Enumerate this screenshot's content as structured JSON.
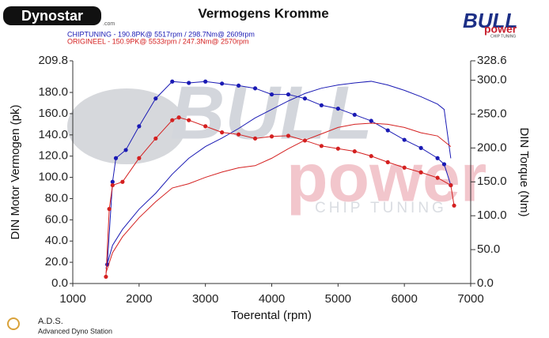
{
  "chart_data": {
    "type": "line",
    "title": "Vermogens Kromme",
    "subtitles": [
      {
        "text": "CHIPTUNING  - 190.8PK@ 5517rpm / 298.7Nm@ 2609rpm",
        "color": "#1a1ab4"
      },
      {
        "text": "ORIGINEEL  - 150.9PK@ 5533rpm / 247.3Nm@ 2570rpm",
        "color": "#d42020"
      }
    ],
    "xlabel": "Toerental (rpm)",
    "ylabel": "DIN Motor Vermogen (pk)",
    "y2label": "DIN Torque (Nm)",
    "xlim": [
      1000,
      7000
    ],
    "xticks": [
      1000,
      2000,
      3000,
      4000,
      5000,
      6000,
      7000
    ],
    "ylim": [
      0,
      209.8
    ],
    "yticks": [
      {
        "value": 0,
        "label": "0.0"
      },
      {
        "value": 20,
        "label": "20.0"
      },
      {
        "value": 40,
        "label": "40.0"
      },
      {
        "value": 60,
        "label": "60.0"
      },
      {
        "value": 80,
        "label": "80.0"
      },
      {
        "value": 100,
        "label": "100.0"
      },
      {
        "value": 120,
        "label": "120.0"
      },
      {
        "value": 140,
        "label": "140.0"
      },
      {
        "value": 160,
        "label": "160.0"
      },
      {
        "value": 180,
        "label": "180.0"
      },
      209.8
    ],
    "y2lim": [
      0,
      328.6
    ],
    "y2ticks": [
      {
        "value": 0,
        "label": "0.0"
      },
      {
        "value": 50,
        "label": "50.0"
      },
      {
        "value": 100,
        "label": "100.0"
      },
      {
        "value": 150,
        "label": "150.0"
      },
      {
        "value": 200,
        "label": "200.0"
      },
      {
        "value": 250,
        "label": "250.0"
      },
      {
        "value": 300,
        "label": "300.0"
      },
      328.6
    ],
    "grid": false,
    "series": [
      {
        "color": "#1a1ab4",
        "axis": "y",
        "markers": false,
        "x": [
          1500,
          1600,
          1750,
          2000,
          2250,
          2500,
          2750,
          3000,
          3250,
          3500,
          3750,
          4000,
          4250,
          4500,
          4750,
          5000,
          5250,
          5500,
          5750,
          6000,
          6250,
          6500,
          6600,
          6700
        ],
        "values": [
          14,
          36,
          51,
          70,
          85,
          103,
          118,
          129,
          137,
          146,
          156,
          164,
          172,
          179,
          184,
          187,
          189,
          190.5,
          187,
          182,
          176,
          169,
          164,
          118
        ]
      },
      {
        "color": "#1a1ab4",
        "axis": "y2",
        "markers": true,
        "x": [
          1520,
          1600,
          1650,
          1800,
          2000,
          2250,
          2500,
          2750,
          3000,
          3250,
          3500,
          3750,
          4000,
          4250,
          4500,
          4750,
          5000,
          5250,
          5500,
          5750,
          6000,
          6250,
          6500,
          6600,
          6700
        ],
        "values": [
          28,
          150,
          185,
          197,
          232,
          273,
          298,
          296,
          298,
          295,
          292,
          288,
          279,
          279,
          273,
          263,
          258,
          249,
          240,
          226,
          212,
          200,
          185,
          176,
          145
        ]
      },
      {
        "color": "#d42020",
        "axis": "y",
        "markers": false,
        "x": [
          1500,
          1600,
          1750,
          2000,
          2250,
          2500,
          2750,
          3000,
          3250,
          3500,
          3750,
          4000,
          4250,
          4500,
          4750,
          5000,
          5250,
          5500,
          5750,
          6000,
          6250,
          6500,
          6700
        ],
        "values": [
          10,
          29,
          44,
          62,
          77,
          90,
          94,
          100,
          105,
          109,
          111,
          118,
          127,
          135,
          141,
          147,
          150,
          151,
          150,
          147,
          142,
          139,
          129
        ]
      },
      {
        "color": "#d42020",
        "axis": "y2",
        "markers": true,
        "x": [
          1500,
          1550,
          1600,
          1750,
          2000,
          2250,
          2500,
          2600,
          2750,
          3000,
          3250,
          3500,
          3750,
          4000,
          4250,
          4500,
          4750,
          5000,
          5250,
          5500,
          5750,
          6000,
          6250,
          6500,
          6700,
          6750
        ],
        "values": [
          10,
          110,
          145,
          150,
          185,
          214,
          241,
          245,
          241,
          232,
          223,
          220,
          214,
          217,
          218,
          211,
          203,
          199,
          195,
          188,
          179,
          171,
          164,
          156,
          145,
          115
        ]
      }
    ]
  },
  "logos": {
    "dynostar": "Dynostar",
    "dynostar_url": ".com",
    "bull": "BULL",
    "power": "power",
    "chip": "CHIP TUNING",
    "watermark_bull": "BULL",
    "watermark_power": "power",
    "watermark_chip": "CHIP TUNING",
    "ads": "A.D.S.",
    "ads_full": "Advanced Dyno Station"
  }
}
